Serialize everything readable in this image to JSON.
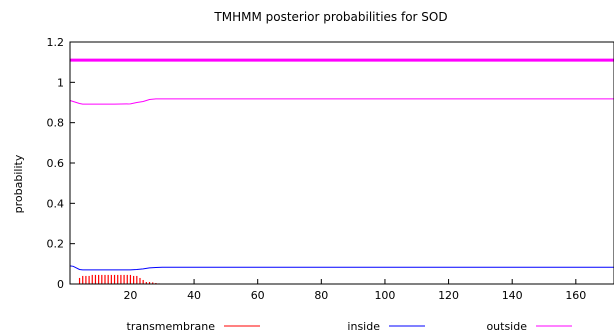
{
  "chart_data": {
    "type": "line",
    "title": "TMHMM posterior probabilities for SOD",
    "xlabel": "",
    "ylabel": "probability",
    "xlim": [
      1,
      172
    ],
    "ylim": [
      0,
      1.2
    ],
    "x_ticks": [
      20,
      40,
      60,
      80,
      100,
      120,
      140,
      160
    ],
    "y_ticks": [
      "0",
      "0.2",
      "0.4",
      "0.6",
      "0.8",
      "1",
      "1.2"
    ],
    "grid": false,
    "legend_position": "bottom",
    "series": [
      {
        "name": "transmembrane",
        "color": "#ff0000",
        "style": "impulses",
        "x": [
          4,
          5,
          6,
          7,
          8,
          9,
          10,
          11,
          12,
          13,
          14,
          15,
          16,
          17,
          18,
          19,
          20,
          21,
          22,
          23,
          24,
          25,
          26,
          27,
          28,
          29
        ],
        "values": [
          0.03,
          0.04,
          0.04,
          0.04,
          0.045,
          0.045,
          0.045,
          0.045,
          0.045,
          0.045,
          0.045,
          0.045,
          0.045,
          0.045,
          0.045,
          0.045,
          0.045,
          0.04,
          0.04,
          0.03,
          0.02,
          0.01,
          0.01,
          0.008,
          0.005,
          0.003
        ]
      },
      {
        "name": "inside",
        "color": "#0000ff",
        "style": "line",
        "x": [
          1,
          2,
          3,
          4,
          5,
          10,
          15,
          20,
          22,
          24,
          26,
          28,
          30,
          40,
          60,
          100,
          140,
          172
        ],
        "values": [
          0.09,
          0.088,
          0.08,
          0.072,
          0.07,
          0.07,
          0.07,
          0.07,
          0.072,
          0.075,
          0.08,
          0.082,
          0.083,
          0.083,
          0.083,
          0.083,
          0.083,
          0.083
        ]
      },
      {
        "name": "outside",
        "color": "#ff00ff",
        "style": "line",
        "x": [
          1,
          2,
          3,
          4,
          5,
          10,
          15,
          20,
          22,
          24,
          26,
          28,
          30,
          40,
          60,
          100,
          140,
          172
        ],
        "values": [
          0.91,
          0.905,
          0.9,
          0.895,
          0.892,
          0.892,
          0.892,
          0.893,
          0.9,
          0.905,
          0.915,
          0.918,
          0.918,
          0.918,
          0.918,
          0.918,
          0.918,
          0.918
        ]
      },
      {
        "name": "",
        "color": "#ff00ff",
        "style": "thick-line",
        "x": [
          1,
          172
        ],
        "values": [
          1.11,
          1.11
        ]
      }
    ]
  }
}
